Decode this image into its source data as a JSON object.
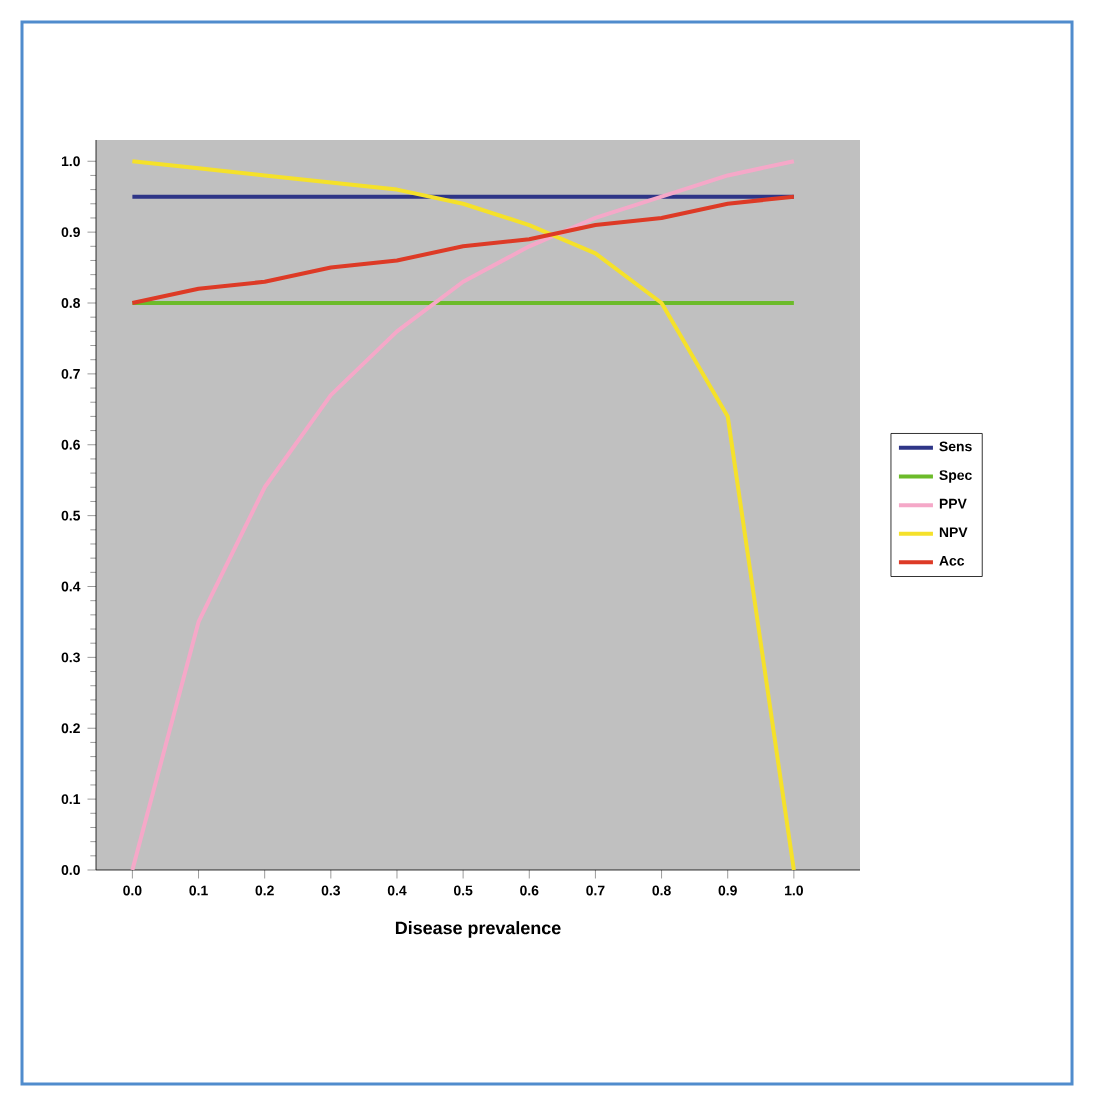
{
  "chart_data": {
    "type": "line",
    "xlabel": "Disease prevalence",
    "x": [
      0,
      0.1,
      0.2,
      0.3,
      0.4,
      0.5,
      0.6,
      0.7,
      0.8,
      0.9,
      1.0
    ],
    "series": [
      {
        "name": "Sens",
        "color": "#2e3587",
        "values": [
          0.95,
          0.95,
          0.95,
          0.95,
          0.95,
          0.95,
          0.95,
          0.95,
          0.95,
          0.95,
          0.95
        ]
      },
      {
        "name": "Spec",
        "color": "#6cbb2a",
        "values": [
          0.8,
          0.8,
          0.8,
          0.8,
          0.8,
          0.8,
          0.8,
          0.8,
          0.8,
          0.8,
          0.8
        ]
      },
      {
        "name": "PPV",
        "color": "#f5a8c8",
        "values": [
          0,
          0.35,
          0.54,
          0.67,
          0.76,
          0.83,
          0.88,
          0.92,
          0.95,
          0.98,
          1.0
        ]
      },
      {
        "name": "NPV",
        "color": "#f5e12a",
        "values": [
          1.0,
          0.99,
          0.98,
          0.97,
          0.96,
          0.94,
          0.91,
          0.87,
          0.8,
          0.64,
          0
        ]
      },
      {
        "name": "Acc",
        "color": "#dd3a26",
        "values": [
          0.8,
          0.82,
          0.83,
          0.85,
          0.86,
          0.88,
          0.89,
          0.91,
          0.92,
          0.94,
          0.95
        ]
      }
    ],
    "xlim": [
      -0.055,
      1.1
    ],
    "ylim": [
      0,
      1.03
    ],
    "xticks": [
      {
        "value": 0,
        "label": "0.0"
      },
      {
        "value": 0.1,
        "label": "0.1"
      },
      {
        "value": 0.2,
        "label": "0.2"
      },
      {
        "value": 0.3,
        "label": "0.3"
      },
      {
        "value": 0.4,
        "label": "0.4"
      },
      {
        "value": 0.5,
        "label": "0.5"
      },
      {
        "value": 0.6,
        "label": "0.6"
      },
      {
        "value": 0.7,
        "label": "0.7"
      },
      {
        "value": 0.8,
        "label": "0.8"
      },
      {
        "value": 0.9,
        "label": "0.9"
      },
      {
        "value": 1.0,
        "label": "1.0"
      }
    ],
    "yticks": [
      {
        "value": 0,
        "label": "0.0"
      },
      {
        "value": 0.1,
        "label": "0.1"
      },
      {
        "value": 0.2,
        "label": "0.2"
      },
      {
        "value": 0.3,
        "label": "0.3"
      },
      {
        "value": 0.4,
        "label": "0.4"
      },
      {
        "value": 0.5,
        "label": "0.5"
      },
      {
        "value": 0.6,
        "label": "0.6"
      },
      {
        "value": 0.7,
        "label": "0.7"
      },
      {
        "value": 0.8,
        "label": "0.8"
      },
      {
        "value": 0.9,
        "label": "0.9"
      },
      {
        "value": 1.0,
        "label": "1.0"
      }
    ],
    "grid": false,
    "legend": "right",
    "marker": "none",
    "line_style": "solid"
  }
}
